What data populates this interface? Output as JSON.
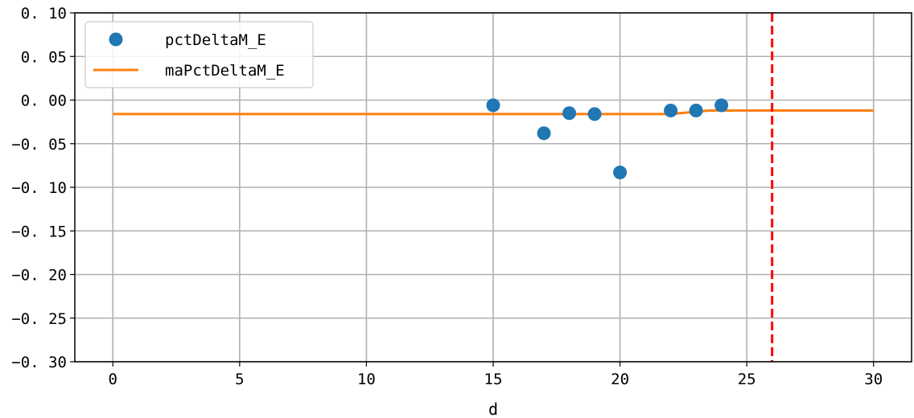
{
  "chart_data": {
    "type": "line",
    "xlabel": "d",
    "ylabel": "",
    "xlim": [
      -1.5,
      31.5
    ],
    "ylim": [
      -0.3,
      0.1
    ],
    "xticks": [
      0,
      5,
      10,
      15,
      20,
      25,
      30
    ],
    "xtick_labels": [
      "0",
      "5",
      "10",
      "15",
      "20",
      "25",
      "30"
    ],
    "yticks": [
      0.1,
      0.05,
      0.0,
      -0.05,
      -0.1,
      -0.15,
      -0.2,
      -0.25,
      -0.3
    ],
    "ytick_labels": [
      "0. 10",
      "0. 05",
      "0. 00",
      "−0. 05",
      "−0. 10",
      "−0. 15",
      "−0. 20",
      "−0. 25",
      "−0. 30"
    ],
    "grid": true,
    "legend_position": "top-left",
    "series": [
      {
        "name": "pctDeltaM_E",
        "kind": "scatter",
        "color": "#1f77b4",
        "points": [
          {
            "x": 15,
            "y": -0.006
          },
          {
            "x": 17,
            "y": -0.038
          },
          {
            "x": 18,
            "y": -0.015
          },
          {
            "x": 19,
            "y": -0.016
          },
          {
            "x": 20,
            "y": -0.083
          },
          {
            "x": 22,
            "y": -0.012
          },
          {
            "x": 23,
            "y": -0.012
          },
          {
            "x": 24,
            "y": -0.006
          }
        ]
      },
      {
        "name": "maPctDeltaM_E",
        "kind": "line",
        "color": "#ff7f0e",
        "points": [
          {
            "x": 0,
            "y": -0.016
          },
          {
            "x": 22,
            "y": -0.016
          },
          {
            "x": 23.5,
            "y": -0.012
          },
          {
            "x": 30,
            "y": -0.012
          }
        ]
      }
    ],
    "vline": {
      "x": 26,
      "color": "#ff0000",
      "style": "dashed"
    }
  }
}
